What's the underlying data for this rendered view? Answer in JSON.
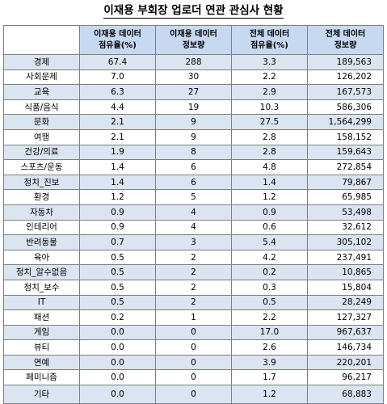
{
  "title": "이재용 부회장 업로더 연관 관심사 현황",
  "headers": [
    "",
    "이재용 데이터\n점유율(%)",
    "이재용 데이터\n정보량",
    "전체 데이터\n점유율(%)",
    "전체 데이터\n정보량"
  ],
  "rows": [
    {
      "category": "경제",
      "lee_share": "67.4",
      "lee_count": "288",
      "all_share": "3.3",
      "all_count": "189,563"
    },
    {
      "category": "사회문제",
      "lee_share": "7.0",
      "lee_count": "30",
      "all_share": "2.2",
      "all_count": "126,202"
    },
    {
      "category": "교육",
      "lee_share": "6.3",
      "lee_count": "27",
      "all_share": "2.9",
      "all_count": "167,573"
    },
    {
      "category": "식품/음식",
      "lee_share": "4.4",
      "lee_count": "19",
      "all_share": "10.3",
      "all_count": "586,306"
    },
    {
      "category": "문화",
      "lee_share": "2.1",
      "lee_count": "9",
      "all_share": "27.5",
      "all_count": "1,564,299"
    },
    {
      "category": "여행",
      "lee_share": "2.1",
      "lee_count": "9",
      "all_share": "2.8",
      "all_count": "158,152"
    },
    {
      "category": "건강/의료",
      "lee_share": "1.9",
      "lee_count": "8",
      "all_share": "2.8",
      "all_count": "159,643"
    },
    {
      "category": "스포츠/운동",
      "lee_share": "1.4",
      "lee_count": "6",
      "all_share": "4.8",
      "all_count": "272,854"
    },
    {
      "category": "정치_진보",
      "lee_share": "1.4",
      "lee_count": "6",
      "all_share": "1.4",
      "all_count": "79,867"
    },
    {
      "category": "환경",
      "lee_share": "1.2",
      "lee_count": "5",
      "all_share": "1.2",
      "all_count": "65,985"
    },
    {
      "category": "자동차",
      "lee_share": "0.9",
      "lee_count": "4",
      "all_share": "0.9",
      "all_count": "53,498"
    },
    {
      "category": "인테리어",
      "lee_share": "0.9",
      "lee_count": "4",
      "all_share": "0.6",
      "all_count": "32,612"
    },
    {
      "category": "반려동물",
      "lee_share": "0.7",
      "lee_count": "3",
      "all_share": "5.4",
      "all_count": "305,102"
    },
    {
      "category": "육아",
      "lee_share": "0.5",
      "lee_count": "2",
      "all_share": "4.2",
      "all_count": "237,491"
    },
    {
      "category": "정치_알수없음",
      "lee_share": "0.5",
      "lee_count": "2",
      "all_share": "0.2",
      "all_count": "10,865"
    },
    {
      "category": "정치_보수",
      "lee_share": "0.5",
      "lee_count": "2",
      "all_share": "0.3",
      "all_count": "15,804"
    },
    {
      "category": "IT",
      "lee_share": "0.5",
      "lee_count": "2",
      "all_share": "0.5",
      "all_count": "28,249"
    },
    {
      "category": "패션",
      "lee_share": "0.2",
      "lee_count": "1",
      "all_share": "2.2",
      "all_count": "127,327"
    },
    {
      "category": "게임",
      "lee_share": "0.0",
      "lee_count": "0",
      "all_share": "17.0",
      "all_count": "967,637"
    },
    {
      "category": "뷰티",
      "lee_share": "0.0",
      "lee_count": "0",
      "all_share": "2.6",
      "all_count": "146,734"
    },
    {
      "category": "연예",
      "lee_share": "0.0",
      "lee_count": "0",
      "all_share": "3.9",
      "all_count": "220,201"
    },
    {
      "category": "페미니즘",
      "lee_share": "0.0",
      "lee_count": "0",
      "all_share": "1.7",
      "all_count": "96,217"
    },
    {
      "category": "기타",
      "lee_share": "0.0",
      "lee_count": "0",
      "all_share": "1.2",
      "all_count": "68,883"
    }
  ],
  "colors": {
    "header_bg": "#c6d9f1",
    "stripe_bg": "#dbe5f1",
    "border": "#7f7f7f"
  }
}
